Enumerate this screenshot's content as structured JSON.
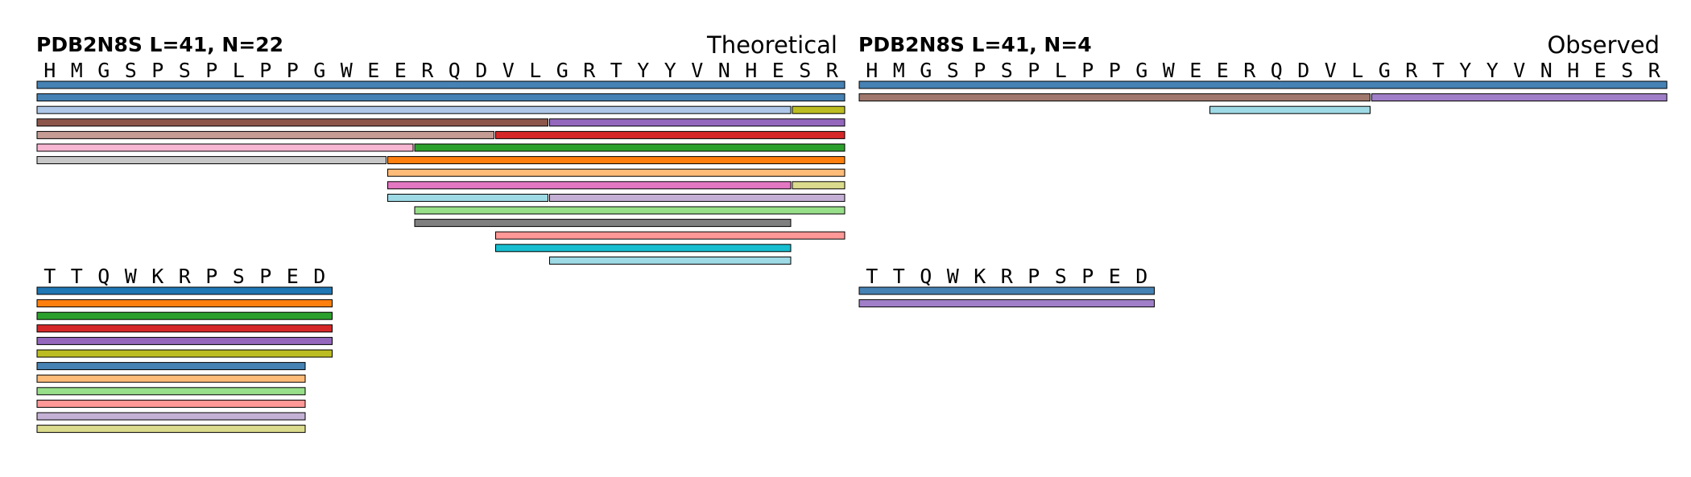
{
  "theoretical": {
    "title": "PDB2N8S  L=41, N=22",
    "label": "Theoretical",
    "row1": {
      "sequence": "HMGSPSPLPPGWEERQDVLGRTYYVNHESR",
      "bars": [
        {
          "start": 1,
          "end": 30,
          "color": "#4682b4"
        },
        {
          "start": 1,
          "end": 30,
          "color": "#4682b4"
        },
        {
          "start": 1,
          "end": 28,
          "color": "#aec7e8"
        },
        {
          "start": 29,
          "end": 30,
          "color": "#bcbd22"
        },
        {
          "start": 1,
          "end": 19,
          "color": "#8c564b"
        },
        {
          "start": 20,
          "end": 30,
          "color": "#9467bd"
        },
        {
          "start": 1,
          "end": 17,
          "color": "#c49c94"
        },
        {
          "start": 18,
          "end": 30,
          "color": "#d62728"
        },
        {
          "start": 1,
          "end": 14,
          "color": "#f7b6d2"
        },
        {
          "start": 15,
          "end": 30,
          "color": "#2ca02c"
        },
        {
          "start": 1,
          "end": 13,
          "color": "#c7c7c7"
        },
        {
          "start": 14,
          "end": 30,
          "color": "#ff7f0e"
        },
        {
          "start": 14,
          "end": 30,
          "color": "#ffbb78"
        },
        {
          "start": 14,
          "end": 28,
          "color": "#e377c2"
        },
        {
          "start": 29,
          "end": 30,
          "color": "#dbdb8d"
        },
        {
          "start": 14,
          "end": 19,
          "color": "#9edae5"
        },
        {
          "start": 20,
          "end": 30,
          "color": "#c5b0d5"
        },
        {
          "start": 15,
          "end": 30,
          "color": "#98df8a"
        },
        {
          "start": 15,
          "end": 28,
          "color": "#7f7f7f"
        },
        {
          "start": 18,
          "end": 30,
          "color": "#ff9896"
        },
        {
          "start": 18,
          "end": 28,
          "color": "#17becf"
        },
        {
          "start": 20,
          "end": 28,
          "color": "#9edae5"
        }
      ]
    },
    "row2": {
      "sequence": "TTQWKRPSPED",
      "bars": [
        {
          "start": 1,
          "end": 11,
          "color": "#1f77b4"
        },
        {
          "start": 1,
          "end": 11,
          "color": "#ff7f0e"
        },
        {
          "start": 1,
          "end": 11,
          "color": "#2ca02c"
        },
        {
          "start": 1,
          "end": 11,
          "color": "#d62728"
        },
        {
          "start": 1,
          "end": 11,
          "color": "#9467bd"
        },
        {
          "start": 1,
          "end": 11,
          "color": "#bcbd22"
        },
        {
          "start": 1,
          "end": 10,
          "color": "#4682b4"
        },
        {
          "start": 1,
          "end": 10,
          "color": "#ffbb78"
        },
        {
          "start": 1,
          "end": 10,
          "color": "#98df8a"
        },
        {
          "start": 1,
          "end": 10,
          "color": "#ff9896"
        },
        {
          "start": 1,
          "end": 10,
          "color": "#c5b0d5"
        },
        {
          "start": 1,
          "end": 10,
          "color": "#dbdb8d"
        }
      ]
    }
  },
  "observed": {
    "title": "PDB2N8S  L=41, N=4",
    "label": "Observed",
    "row1": {
      "sequence": "HMGSPSPLPPGWEERQDVLGRTYYVNHESR",
      "bars": [
        {
          "start": 1,
          "end": 30,
          "color": "#4682b4"
        },
        {
          "start": 1,
          "end": 19,
          "color": "#a0786e"
        },
        {
          "start": 20,
          "end": 30,
          "color": "#a07fc8"
        },
        {
          "start": 14,
          "end": 19,
          "color": "#9edae5"
        }
      ]
    },
    "row2": {
      "sequence": "TTQWKRPSPED",
      "bars": [
        {
          "start": 1,
          "end": 11,
          "color": "#4682b4"
        },
        {
          "start": 1,
          "end": 11,
          "color": "#a07fc8"
        }
      ]
    }
  }
}
